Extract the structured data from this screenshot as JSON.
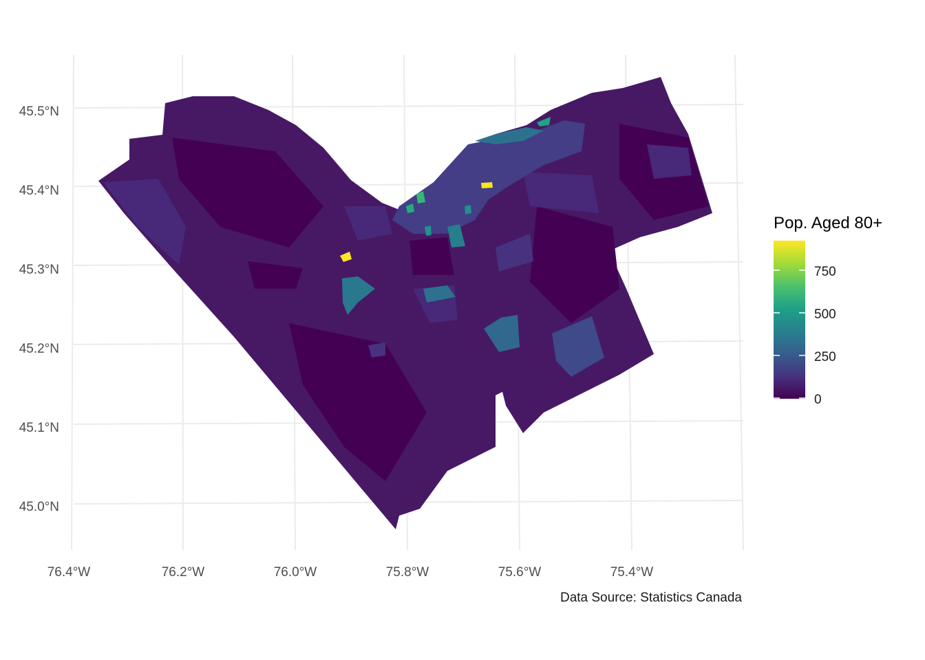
{
  "map": {
    "region": "Ottawa census tracts",
    "fill_variable_label": "Pop. Aged 80+",
    "palette": "viridis",
    "background": "#ffffff",
    "gridline_color": "#ebebeb",
    "x_axis": {
      "ticks": [
        {
          "value": -76.4,
          "label": "76.4°W"
        },
        {
          "value": -76.2,
          "label": "76.2°W"
        },
        {
          "value": -76.0,
          "label": "76.0°W"
        },
        {
          "value": -75.8,
          "label": "75.8°W"
        },
        {
          "value": -75.6,
          "label": "75.6°W"
        },
        {
          "value": -75.4,
          "label": "75.4°W"
        }
      ]
    },
    "y_axis": {
      "ticks": [
        {
          "value": 45.5,
          "label": "45.5°N"
        },
        {
          "value": 45.4,
          "label": "45.4°N"
        },
        {
          "value": 45.3,
          "label": "45.3°N"
        },
        {
          "value": 45.2,
          "label": "45.2°N"
        },
        {
          "value": 45.1,
          "label": "45.1°N"
        },
        {
          "value": 45.0,
          "label": "45.0°N"
        }
      ]
    },
    "legend": {
      "title": "Pop. Aged 80+",
      "position": "right",
      "range": [
        0,
        930
      ],
      "ticks": [
        {
          "value": 0,
          "label": "0"
        },
        {
          "value": 250,
          "label": "250"
        },
        {
          "value": 500,
          "label": "500"
        },
        {
          "value": 750,
          "label": "750"
        }
      ]
    },
    "caption": "Data Source: Statistics Canada",
    "highlighted_tracts": [
      {
        "lon": -75.91,
        "lat": 45.31,
        "value": 930
      },
      {
        "lon": -75.66,
        "lat": 45.403,
        "value": 930
      },
      {
        "lon": -75.79,
        "lat": 45.372,
        "value": 620
      },
      {
        "lon": -75.5,
        "lat": 45.487,
        "value": 480
      },
      {
        "lon": -75.7,
        "lat": 45.335,
        "value": 400
      },
      {
        "lon": -75.585,
        "lat": 45.218,
        "value": 320
      },
      {
        "lon": -75.87,
        "lat": 45.27,
        "value": 330
      }
    ]
  }
}
